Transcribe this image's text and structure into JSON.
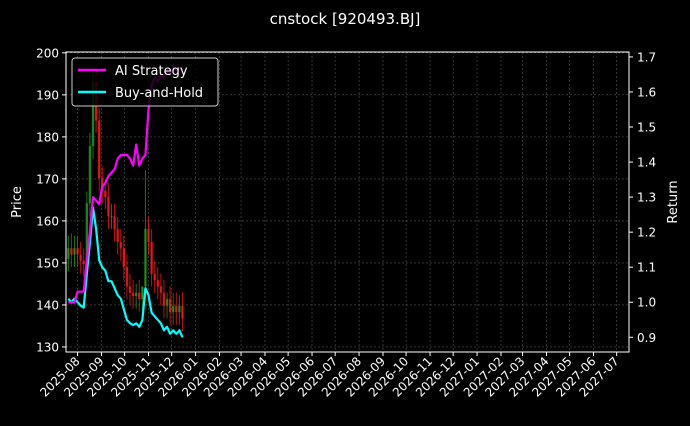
{
  "chart_data": {
    "type": "line",
    "title": "cnstock [920493.BJ]",
    "ylabel_left": "Price",
    "ylabel_right": "Return",
    "ylim_left": [
      128.8,
      200.2
    ],
    "ylim_right": [
      0.858,
      1.714
    ],
    "xlim": [
      "2025-07-17",
      "2027-07-17"
    ],
    "yticks_left": [
      130,
      140,
      150,
      160,
      170,
      180,
      190,
      200
    ],
    "yticks_right": [
      "0.9",
      "1.0",
      "1.1",
      "1.2",
      "1.3",
      "1.4",
      "1.5",
      "1.6",
      "1.7"
    ],
    "xticks": [
      "2025-08",
      "2025-09",
      "2025-10",
      "2025-11",
      "2025-12",
      "2026-01",
      "2026-02",
      "2026-03",
      "2026-04",
      "2026-05",
      "2026-06",
      "2026-07",
      "2026-08",
      "2026-09",
      "2026-10",
      "2026-11",
      "2026-12",
      "2027-01",
      "2027-02",
      "2027-03",
      "2027-04",
      "2027-05",
      "2027-06",
      "2027-07"
    ],
    "grid": true,
    "legend_position": "top-left",
    "colors": {
      "up": "#1f9d1f",
      "down": "#ff1a1a",
      "strategy": "#ff00ff",
      "buy_hold": "#00ffff",
      "background": "#000000"
    },
    "dates": [
      "2025-07-20",
      "2025-07-24",
      "2025-07-28",
      "2025-08-01",
      "2025-08-05",
      "2025-08-09",
      "2025-08-13",
      "2025-08-17",
      "2025-08-21",
      "2025-08-25",
      "2025-08-29",
      "2025-09-02",
      "2025-09-06",
      "2025-09-10",
      "2025-09-14",
      "2025-09-18",
      "2025-09-22",
      "2025-09-26",
      "2025-09-30",
      "2025-10-04",
      "2025-10-08",
      "2025-10-12",
      "2025-10-16",
      "2025-10-20",
      "2025-10-24",
      "2025-10-28",
      "2025-11-01",
      "2025-11-05",
      "2025-11-09",
      "2025-11-13",
      "2025-11-17",
      "2025-11-21",
      "2025-11-25",
      "2025-11-29",
      "2025-12-03",
      "2025-12-07",
      "2025-12-11",
      "2025-12-15"
    ],
    "ohlc": {
      "open": [
        151,
        153.5,
        152,
        153.5,
        152,
        150.5,
        149.7,
        164.2,
        177.8,
        193,
        183.9,
        170.2,
        167.2,
        165.7,
        161.1,
        161.1,
        158.1,
        155,
        153.5,
        149,
        144.4,
        142.9,
        142.1,
        142.9,
        141.4,
        144.4,
        158.1,
        155,
        147.4,
        145.9,
        144.4,
        142.9,
        139.8,
        141.4,
        138.3,
        139.8,
        138.3,
        139.8
      ],
      "high": [
        156.5,
        157,
        156.5,
        156.5,
        155,
        153.5,
        167,
        181,
        196,
        196,
        187,
        173,
        170,
        169,
        164,
        164,
        161,
        158,
        156.5,
        152,
        147.4,
        146,
        145,
        146,
        144.4,
        172,
        161,
        158,
        150.4,
        149,
        147.4,
        146,
        143,
        144.4,
        142.8,
        143,
        142.3,
        143
      ],
      "low": [
        148,
        149,
        149,
        149,
        147.5,
        146.7,
        146.7,
        161,
        174.8,
        181,
        167.2,
        164.2,
        162.7,
        158.1,
        158.1,
        155.1,
        152,
        150.5,
        146,
        141.4,
        139.9,
        139.1,
        139.1,
        138.4,
        138.4,
        141.4,
        152,
        144.4,
        142.9,
        141.4,
        139.9,
        136.8,
        136.8,
        135.3,
        135.3,
        135.3,
        135.3,
        133.8
      ],
      "close": [
        153.5,
        152,
        153.5,
        152,
        150.5,
        149.7,
        164.2,
        177.8,
        193,
        183.9,
        170.2,
        167.2,
        165.7,
        161.1,
        161.1,
        158.1,
        155,
        153.5,
        149,
        144.4,
        142.9,
        142.1,
        142.9,
        141.4,
        144.4,
        158.1,
        155,
        147.4,
        145.9,
        144.4,
        142.9,
        139.8,
        141.4,
        138.3,
        139.8,
        138.3,
        139.8,
        136.8
      ]
    },
    "series": [
      {
        "name": "AI Strategy",
        "axis": "right",
        "values": [
          1.0,
          1.0,
          1.0,
          1.03,
          1.03,
          1.03,
          1.12,
          1.2,
          1.3,
          1.29,
          1.28,
          1.33,
          1.34,
          1.36,
          1.37,
          1.38,
          1.41,
          1.42,
          1.42,
          1.42,
          1.41,
          1.39,
          1.45,
          1.39,
          1.41,
          1.42,
          1.55,
          1.62,
          1.64,
          1.63,
          1.65,
          1.64,
          1.66,
          1.65,
          1.67,
          1.66,
          1.67,
          1.66
        ]
      },
      {
        "name": "Buy-and-Hold",
        "axis": "right",
        "values": [
          1.01,
          1.0,
          1.01,
          1.0,
          0.99,
          0.985,
          1.08,
          1.17,
          1.27,
          1.21,
          1.12,
          1.1,
          1.09,
          1.06,
          1.06,
          1.04,
          1.02,
          1.01,
          0.98,
          0.95,
          0.94,
          0.935,
          0.94,
          0.93,
          0.95,
          1.04,
          1.02,
          0.97,
          0.96,
          0.95,
          0.94,
          0.92,
          0.93,
          0.91,
          0.92,
          0.91,
          0.92,
          0.9
        ]
      }
    ]
  }
}
